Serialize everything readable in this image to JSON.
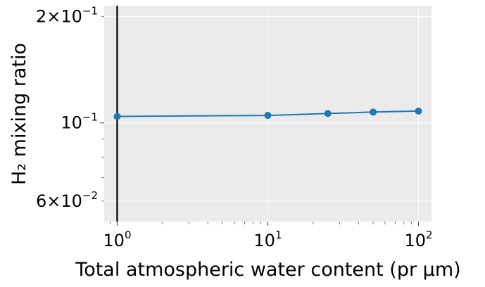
{
  "chart_data": {
    "type": "line",
    "xlabel": "Total atmospheric water content (pr μm)",
    "ylabel": "H₂ mixing ratio",
    "xscale": "log",
    "yscale": "log",
    "xlim": [
      0.82,
      122
    ],
    "ylim": [
      0.0525,
      0.215
    ],
    "grid": true,
    "background": "#ebebeb",
    "series": [
      {
        "color": "#1f77b4",
        "x": [
          1,
          10,
          25,
          50,
          100
        ],
        "y": [
          0.1043,
          0.105,
          0.1063,
          0.1073,
          0.108
        ]
      }
    ],
    "vline_x": 1,
    "x_ticks": [
      {
        "value": 1,
        "base": "10",
        "exp": "0"
      },
      {
        "value": 10,
        "base": "10",
        "exp": "1"
      },
      {
        "value": 100,
        "base": "10",
        "exp": "2"
      }
    ],
    "y_ticks": [
      {
        "value": 0.2,
        "mant": "2",
        "base": "×10",
        "exp": "−1"
      },
      {
        "value": 0.1,
        "mant": "",
        "base": "10",
        "exp": "−1"
      },
      {
        "value": 0.06,
        "mant": "6",
        "base": "×10",
        "exp": "−2"
      }
    ]
  }
}
